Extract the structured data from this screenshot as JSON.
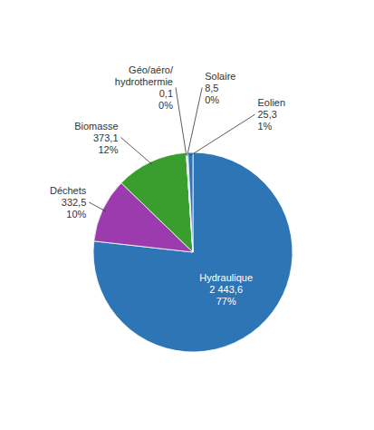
{
  "chart_data": {
    "type": "pie",
    "categories": [
      "Hydraulique",
      "Déchets",
      "Biomasse",
      "Géo/aéro/\nhydrothermie",
      "Solaire",
      "Eolien"
    ],
    "values": [
      2443.6,
      332.5,
      373.1,
      0.1,
      8.5,
      25.3
    ],
    "value_labels": [
      "2 443,6",
      "332,5",
      "373,1",
      "0,1",
      "8,5",
      "25,3"
    ],
    "percentages": [
      77,
      10,
      12,
      0,
      0,
      1
    ],
    "percentage_labels": [
      "77%",
      "10%",
      "12%",
      "0%",
      "0%",
      "1%"
    ],
    "colors": [
      "#2E75B6",
      "#9B3BAE",
      "#3A9E2E",
      "#FFD700",
      "#ADD8E6",
      "#2E75B6"
    ]
  }
}
